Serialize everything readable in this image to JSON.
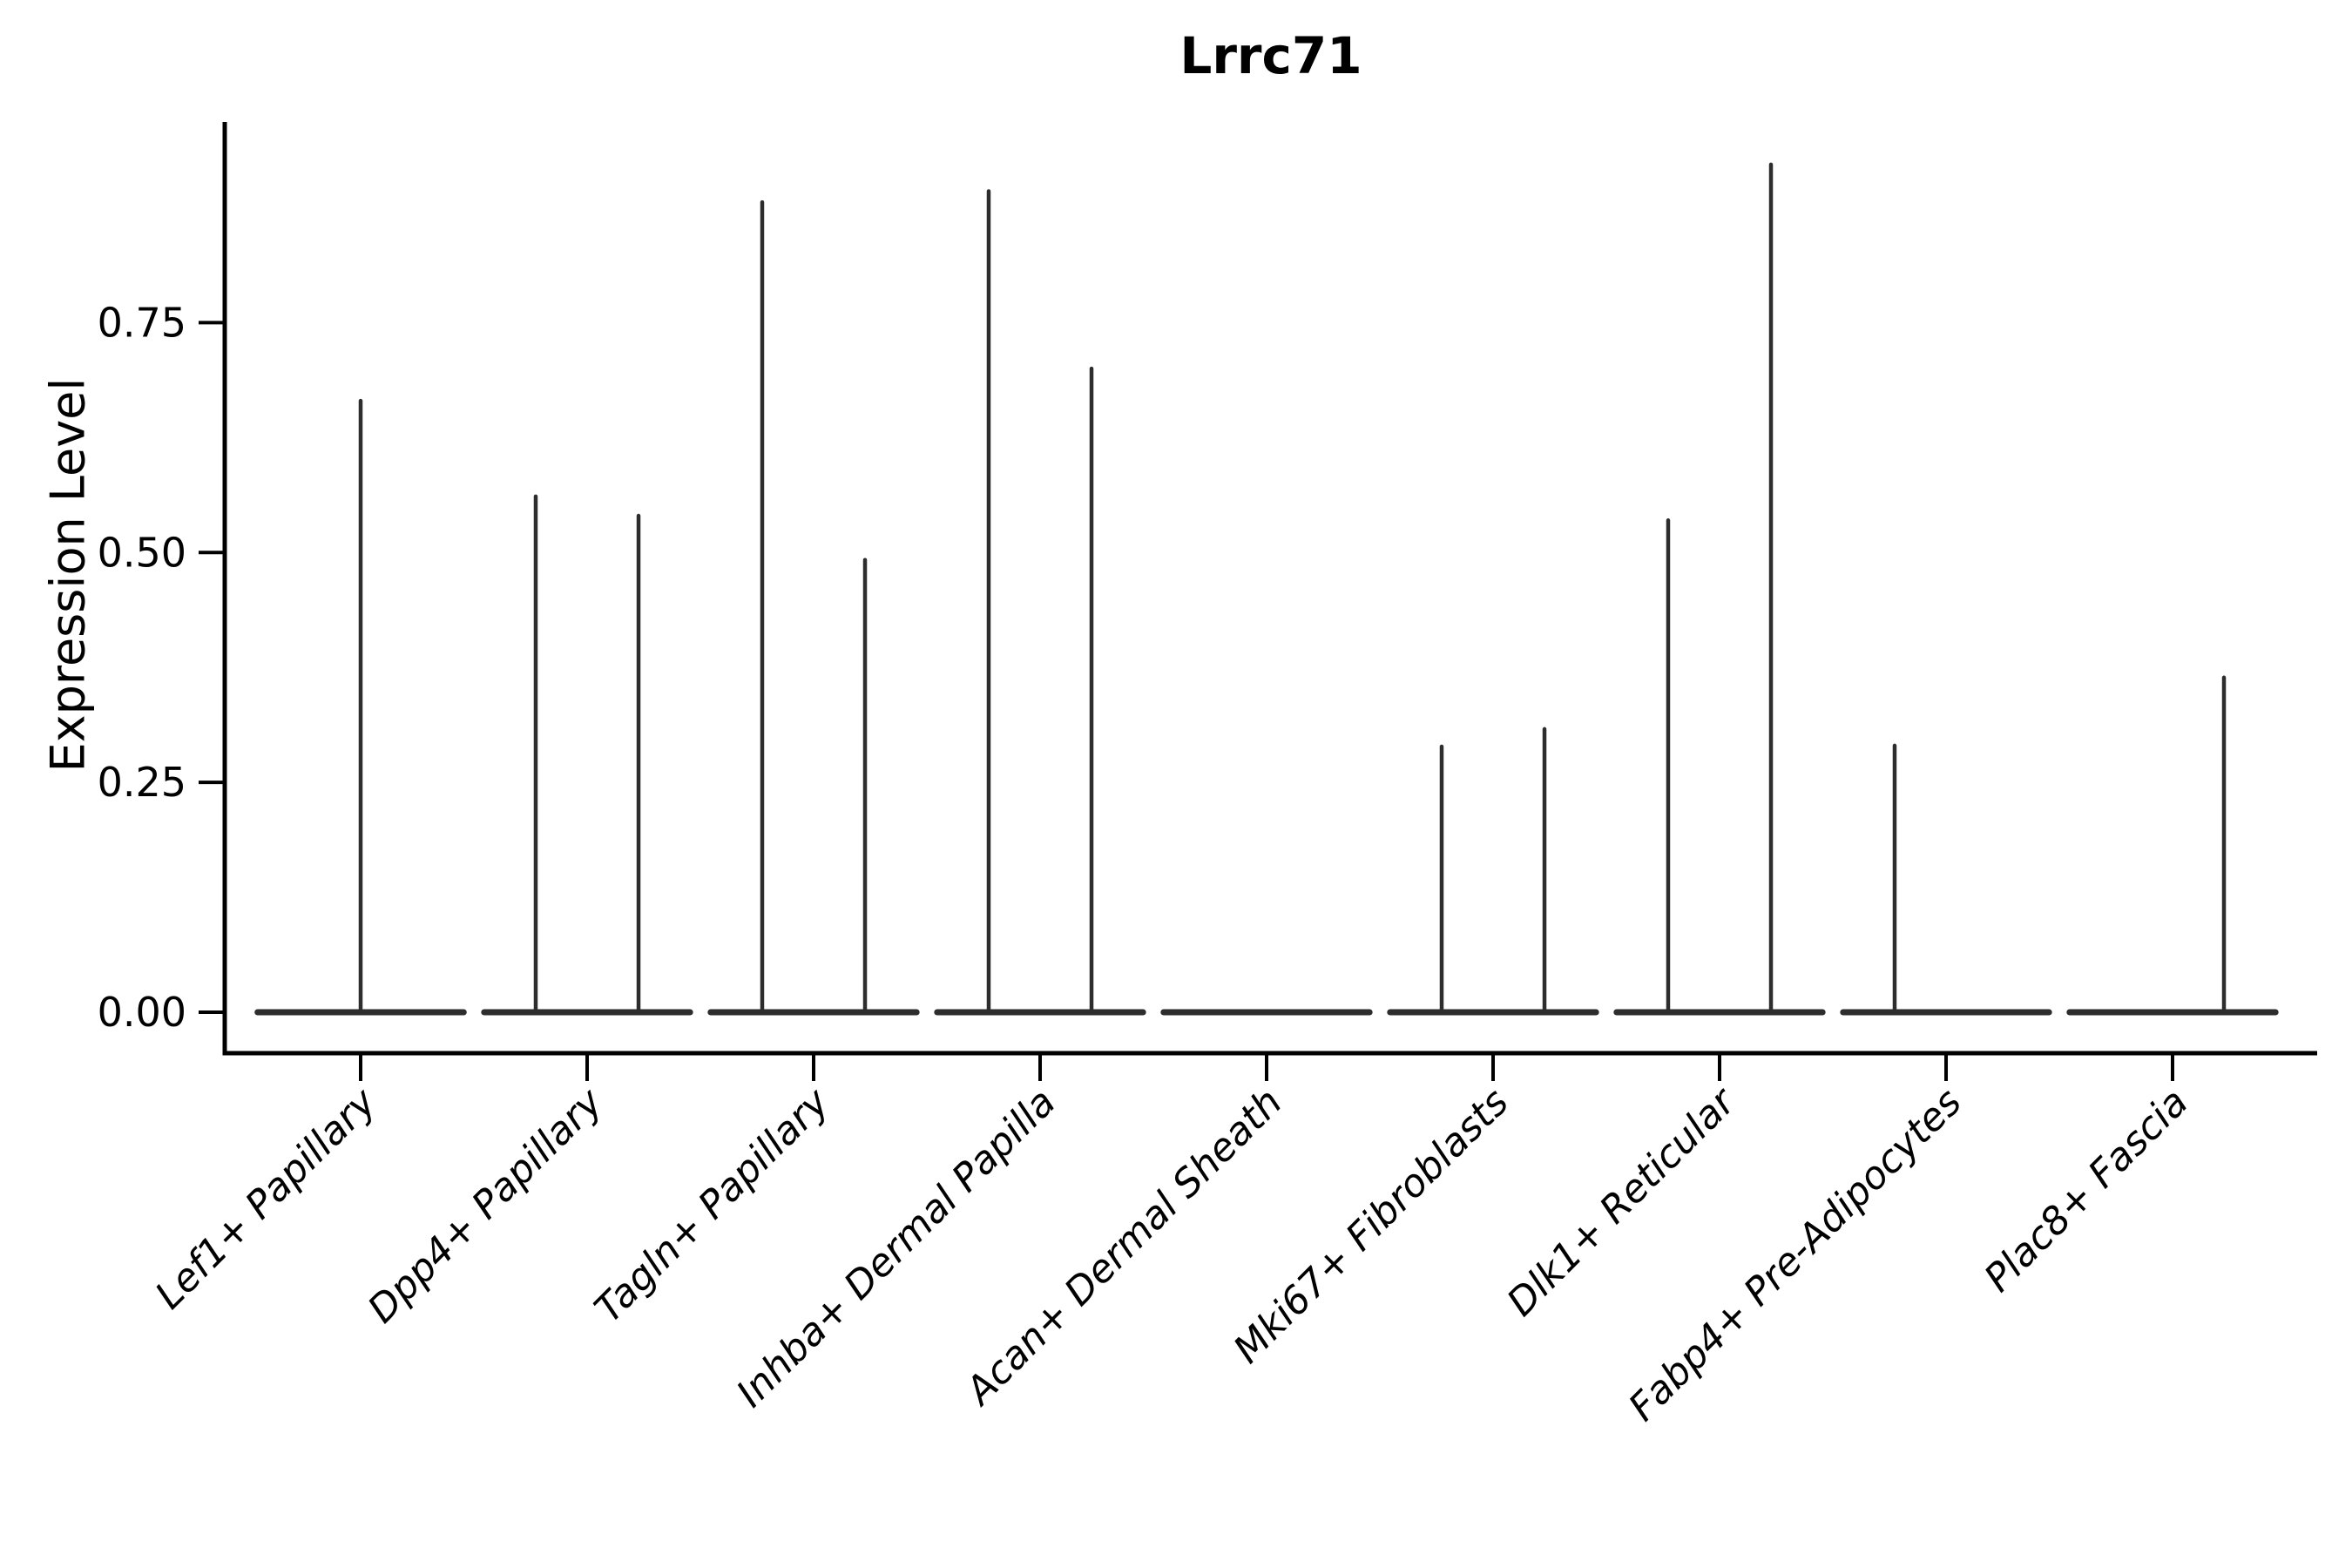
{
  "chart_data": {
    "type": "violin",
    "title": "Lrrc71",
    "ylabel": "Expression Level",
    "xlabel": "",
    "yticks": [
      0.0,
      0.25,
      0.5,
      0.75
    ],
    "ytick_labels": [
      "0.00",
      "0.25",
      "0.50",
      "0.75"
    ],
    "ylim": [
      -0.045,
      0.968
    ],
    "grid": false,
    "legend": "none",
    "categories": [
      "Lef1+ Papillary",
      "Dpp4+ Papillary",
      "Tagln+ Papillary",
      "Inhba+ Dermal Papilla",
      "Acan+ Dermal Sheath",
      "Mki67+ Fibroblasts",
      "Dlk1+ Reticular",
      "Fabp4+ Pre-Adipocytes",
      "Plac8+ Fascia"
    ],
    "series": [
      {
        "category": "Lef1+ Papillary",
        "violins": [
          {
            "x_offset": 0.0,
            "max": 0.665
          }
        ]
      },
      {
        "category": "Dpp4+ Papillary",
        "violins": [
          {
            "x_offset": -0.227,
            "max": 0.561
          },
          {
            "x_offset": 0.227,
            "max": 0.54
          }
        ]
      },
      {
        "category": "Tagln+ Papillary",
        "violins": [
          {
            "x_offset": -0.227,
            "max": 0.881
          },
          {
            "x_offset": 0.227,
            "max": 0.492
          }
        ]
      },
      {
        "category": "Inhba+ Dermal Papilla",
        "violins": [
          {
            "x_offset": -0.227,
            "max": 0.893
          },
          {
            "x_offset": 0.227,
            "max": 0.7
          }
        ]
      },
      {
        "category": "Acan+ Dermal Sheath",
        "violins": [
          {
            "x_offset": -0.227,
            "max": 0.0
          },
          {
            "x_offset": 0.227,
            "max": 0.0
          }
        ]
      },
      {
        "category": "Mki67+ Fibroblasts",
        "violins": [
          {
            "x_offset": -0.227,
            "max": 0.289
          },
          {
            "x_offset": 0.227,
            "max": 0.308
          }
        ]
      },
      {
        "category": "Dlk1+ Reticular",
        "violins": [
          {
            "x_offset": -0.227,
            "max": 0.535
          },
          {
            "x_offset": 0.227,
            "max": 0.922
          }
        ]
      },
      {
        "category": "Fabp4+ Pre-Adipocytes",
        "violins": [
          {
            "x_offset": -0.227,
            "max": 0.29
          },
          {
            "x_offset": 0.227,
            "max": 0.0
          }
        ]
      },
      {
        "category": "Plac8+ Fascia",
        "violins": [
          {
            "x_offset": -0.227,
            "max": 0.0
          },
          {
            "x_offset": 0.227,
            "max": 0.364
          }
        ]
      }
    ],
    "colors": {
      "violin_line": "#2d2d2d",
      "axis": "#000000",
      "text": "#000000",
      "background": "#ffffff"
    }
  }
}
